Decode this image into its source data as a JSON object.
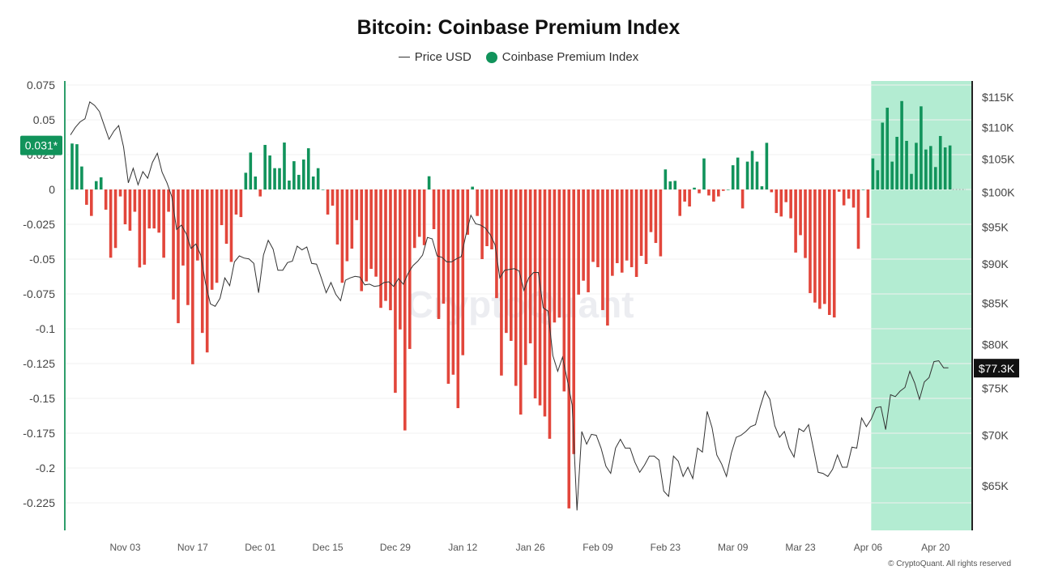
{
  "chart_data": {
    "type": "bar+line",
    "title": "Bitcoin: Coinbase Premium Index",
    "legend": [
      {
        "name": "Price USD",
        "marker": "line",
        "color": "#333333"
      },
      {
        "name": "Coinbase Premium Index",
        "marker": "dot",
        "color": "#11935b"
      }
    ],
    "legend_placement": "top-center",
    "colors": {
      "positive": "#11935b",
      "negative": "#e2463b",
      "price_line": "#333333",
      "highlight": "#b3ecd2",
      "left_axis": "#2e9e6b"
    },
    "x_ticks": [
      "Nov 03",
      "Nov 17",
      "Dec 01",
      "Dec 15",
      "Dec 29",
      "Jan 12",
      "Jan 26",
      "Feb 09",
      "Feb 23",
      "Mar 09",
      "Mar 23",
      "Apr 06",
      "Apr 20"
    ],
    "y_left": {
      "ticks": [
        "0.075",
        "0.05",
        "0.025",
        "0",
        "-0.025",
        "-0.05",
        "-0.075",
        "-0.1",
        "-0.125",
        "-0.15",
        "-0.175",
        "-0.2",
        "-0.225"
      ],
      "range": [
        -0.24,
        0.078
      ]
    },
    "y_right": {
      "scale": "log",
      "ticks": [
        "$65K",
        "$70K",
        "$75K",
        "$80K",
        "$85K",
        "$90K",
        "$95K",
        "$100K",
        "$105K",
        "$110K",
        "$115K"
      ],
      "tick_values": [
        65000,
        70000,
        75000,
        80000,
        85000,
        90000,
        95000,
        100000,
        105000,
        110000,
        115000
      ]
    },
    "grid": "horizontal",
    "highlight_range": [
      "Apr 07",
      "Apr 23"
    ],
    "last_premium_label": "0.031*",
    "last_price_label": "$77.3K",
    "watermark": "CryptoQuant",
    "dates": [
      "Oct 23",
      "Oct 24",
      "Oct 25",
      "Oct 26",
      "Oct 27",
      "Oct 28",
      "Oct 29",
      "Oct 30",
      "Oct 31",
      "Nov 01",
      "Nov 02",
      "Nov 03",
      "Nov 04",
      "Nov 05",
      "Nov 06",
      "Nov 07",
      "Nov 08",
      "Nov 09",
      "Nov 10",
      "Nov 11",
      "Nov 12",
      "Nov 13",
      "Nov 14",
      "Nov 15",
      "Nov 16",
      "Nov 17",
      "Nov 18",
      "Nov 19",
      "Nov 20",
      "Nov 21",
      "Nov 22",
      "Nov 23",
      "Nov 24",
      "Nov 25",
      "Nov 26",
      "Nov 27",
      "Nov 28",
      "Nov 29",
      "Nov 30",
      "Dec 01",
      "Dec 02",
      "Dec 03",
      "Dec 04",
      "Dec 05",
      "Dec 06",
      "Dec 07",
      "Dec 08",
      "Dec 09",
      "Dec 10",
      "Dec 11",
      "Dec 12",
      "Dec 13",
      "Dec 14",
      "Dec 15",
      "Dec 16",
      "Dec 17",
      "Dec 18",
      "Dec 19",
      "Dec 20",
      "Dec 21",
      "Dec 22",
      "Dec 23",
      "Dec 24",
      "Dec 25",
      "Dec 26",
      "Dec 27",
      "Dec 28",
      "Dec 29",
      "Dec 30",
      "Dec 31",
      "Jan 01",
      "Jan 02",
      "Jan 03",
      "Jan 04",
      "Jan 05",
      "Jan 06",
      "Jan 07",
      "Jan 08",
      "Jan 09",
      "Jan 10",
      "Jan 11",
      "Jan 12",
      "Jan 13",
      "Jan 14",
      "Jan 15",
      "Jan 16",
      "Jan 17",
      "Jan 18",
      "Jan 19",
      "Jan 20",
      "Jan 21",
      "Jan 22",
      "Jan 23",
      "Jan 24",
      "Jan 25",
      "Jan 26",
      "Jan 27",
      "Jan 28",
      "Jan 29",
      "Jan 30",
      "Jan 31",
      "Feb 01",
      "Feb 02",
      "Feb 03",
      "Feb 04",
      "Feb 05",
      "Feb 06",
      "Feb 07",
      "Feb 08",
      "Feb 09",
      "Feb 10",
      "Feb 11",
      "Feb 12",
      "Feb 13",
      "Feb 14",
      "Feb 15",
      "Feb 16",
      "Feb 17",
      "Feb 18",
      "Feb 19",
      "Feb 20",
      "Feb 21",
      "Feb 22",
      "Feb 23",
      "Feb 24",
      "Feb 25",
      "Feb 26",
      "Feb 27",
      "Feb 28",
      "Mar 01",
      "Mar 02",
      "Mar 03",
      "Mar 04",
      "Mar 05",
      "Mar 06",
      "Mar 07",
      "Mar 08",
      "Mar 09",
      "Mar 10",
      "Mar 11",
      "Mar 12",
      "Mar 13",
      "Mar 14",
      "Mar 15",
      "Mar 16",
      "Mar 17",
      "Mar 18",
      "Mar 19",
      "Mar 20",
      "Mar 21",
      "Mar 22",
      "Mar 23",
      "Mar 24",
      "Mar 25",
      "Mar 26",
      "Mar 27",
      "Mar 28",
      "Mar 29",
      "Mar 30",
      "Mar 31",
      "Apr 01",
      "Apr 02",
      "Apr 03",
      "Apr 04",
      "Apr 05",
      "Apr 06",
      "Apr 07",
      "Apr 08",
      "Apr 09",
      "Apr 10",
      "Apr 11",
      "Apr 12",
      "Apr 13",
      "Apr 14",
      "Apr 15",
      "Apr 16",
      "Apr 17",
      "Apr 18",
      "Apr 19",
      "Apr 20",
      "Apr 21",
      "Apr 22",
      "Apr 23"
    ],
    "series": [
      {
        "name": "Coinbase Premium Index",
        "type": "bar",
        "axis": "left",
        "values": [
          0.033,
          0.0325,
          0.0165,
          -0.011,
          -0.019,
          0.006,
          0.0087,
          -0.0145,
          -0.049,
          -0.042,
          -0.005,
          -0.025,
          -0.0296,
          -0.016,
          -0.056,
          -0.054,
          -0.028,
          -0.028,
          -0.031,
          -0.049,
          -0.016,
          -0.079,
          -0.096,
          -0.0546,
          -0.083,
          -0.1255,
          -0.051,
          -0.103,
          -0.117,
          -0.072,
          -0.067,
          -0.0256,
          -0.039,
          -0.052,
          -0.018,
          -0.0198,
          0.012,
          0.0265,
          0.0093,
          -0.005,
          0.032,
          0.0244,
          0.0153,
          0.0153,
          0.0337,
          0.0064,
          0.0203,
          0.0105,
          0.0215,
          0.0296,
          0.0093,
          0.0153,
          0,
          -0.018,
          -0.0116,
          -0.0395,
          -0.067,
          -0.0515,
          -0.0425,
          -0.022,
          -0.073,
          -0.066,
          -0.057,
          -0.0626,
          -0.085,
          -0.08,
          -0.0867,
          -0.146,
          -0.1005,
          -0.173,
          -0.1145,
          -0.042,
          -0.034,
          -0.04,
          0.0095,
          -0.0285,
          -0.093,
          -0.082,
          -0.1395,
          -0.133,
          -0.157,
          -0.119,
          -0.0325,
          0.002,
          -0.019,
          -0.05,
          -0.0407,
          -0.043,
          -0.078,
          -0.1336,
          -0.103,
          -0.1087,
          -0.141,
          -0.1616,
          -0.126,
          -0.1105,
          -0.15,
          -0.155,
          -0.163,
          -0.179,
          -0.0955,
          -0.092,
          -0.145,
          -0.229,
          -0.19,
          -0.0755,
          -0.0655,
          -0.0738,
          -0.052,
          -0.0558,
          -0.0866,
          -0.0977,
          -0.062,
          -0.0529,
          -0.0597,
          -0.051,
          -0.0558,
          -0.0628,
          -0.0477,
          -0.0535,
          -0.0306,
          -0.0384,
          -0.048,
          0.0144,
          0.0058,
          0.0062,
          -0.019,
          -0.0087,
          -0.0122,
          0.0013,
          -0.0027,
          0.0223,
          -0.0043,
          -0.0087,
          -0.005,
          -0.001,
          0,
          0.0174,
          0.0229,
          -0.0136,
          0.02,
          0.0277,
          0.02,
          0.0023,
          0.0335,
          -0.002,
          -0.0169,
          -0.0194,
          -0.0091,
          -0.0207,
          -0.0453,
          -0.0328,
          -0.0492,
          -0.0744,
          -0.0812,
          -0.0857,
          -0.0822,
          -0.0901,
          -0.0919,
          -0.0016,
          -0.0114,
          -0.0066,
          -0.013,
          -0.0426,
          0,
          -0.0203,
          0.0223,
          0.0138,
          0.048,
          0.0587,
          0.02,
          0.0378,
          0.0635,
          0.0349,
          0.0112,
          0.0335,
          0.0597,
          0.0287,
          0.0312,
          0.0161,
          0.0384,
          0.0302,
          0.0316
        ]
      },
      {
        "name": "Price USD",
        "type": "line",
        "axis": "right",
        "values": [
          108800,
          110000,
          110900,
          111400,
          114200,
          113600,
          112600,
          110300,
          108100,
          109400,
          110300,
          106900,
          101400,
          103600,
          101100,
          103100,
          102100,
          104500,
          105900,
          103000,
          101400,
          99400,
          94700,
          95300,
          94100,
          92100,
          92700,
          91200,
          87500,
          84900,
          84600,
          85600,
          88200,
          87200,
          90300,
          91100,
          90800,
          90700,
          90100,
          86300,
          91200,
          93200,
          92000,
          89200,
          89200,
          90200,
          90400,
          92400,
          91900,
          92300,
          90100,
          90000,
          88200,
          86300,
          87600,
          86100,
          85300,
          87900,
          88200,
          88400,
          88300,
          87300,
          87400,
          87100,
          87200,
          87600,
          87700,
          87100,
          88100,
          87400,
          88800,
          89800,
          90400,
          91200,
          93600,
          93400,
          91100,
          90900,
          90300,
          90300,
          90700,
          91000,
          94000,
          96700,
          95500,
          95300,
          94900,
          94000,
          92600,
          88200,
          89200,
          89300,
          89400,
          89100,
          86600,
          88200,
          88900,
          88900,
          84400,
          84000,
          78700,
          76900,
          78500,
          75900,
          73200,
          62700,
          70400,
          69100,
          70100,
          70000,
          68700,
          66900,
          66200,
          68700,
          69600,
          68700,
          68700,
          67300,
          66300,
          67000,
          67900,
          67900,
          67500,
          64500,
          64000,
          67900,
          67400,
          65900,
          66800,
          65700,
          68700,
          68300,
          72500,
          70800,
          68000,
          67100,
          65900,
          68200,
          69800,
          70000,
          70400,
          70900,
          71100,
          73000,
          74700,
          73800,
          71000,
          69800,
          70400,
          68700,
          67800,
          70700,
          70400,
          71100,
          68700,
          66300,
          66200,
          65900,
          66600,
          68000,
          66800,
          66800,
          68800,
          68700,
          71800,
          70900,
          71700,
          72900,
          73000,
          70600,
          74300,
          74100,
          74700,
          75100,
          76900,
          75600,
          73800,
          75700,
          76200,
          78000,
          78100,
          77300,
          77300
        ]
      }
    ]
  },
  "footer": "© CryptoQuant. All rights reserved"
}
